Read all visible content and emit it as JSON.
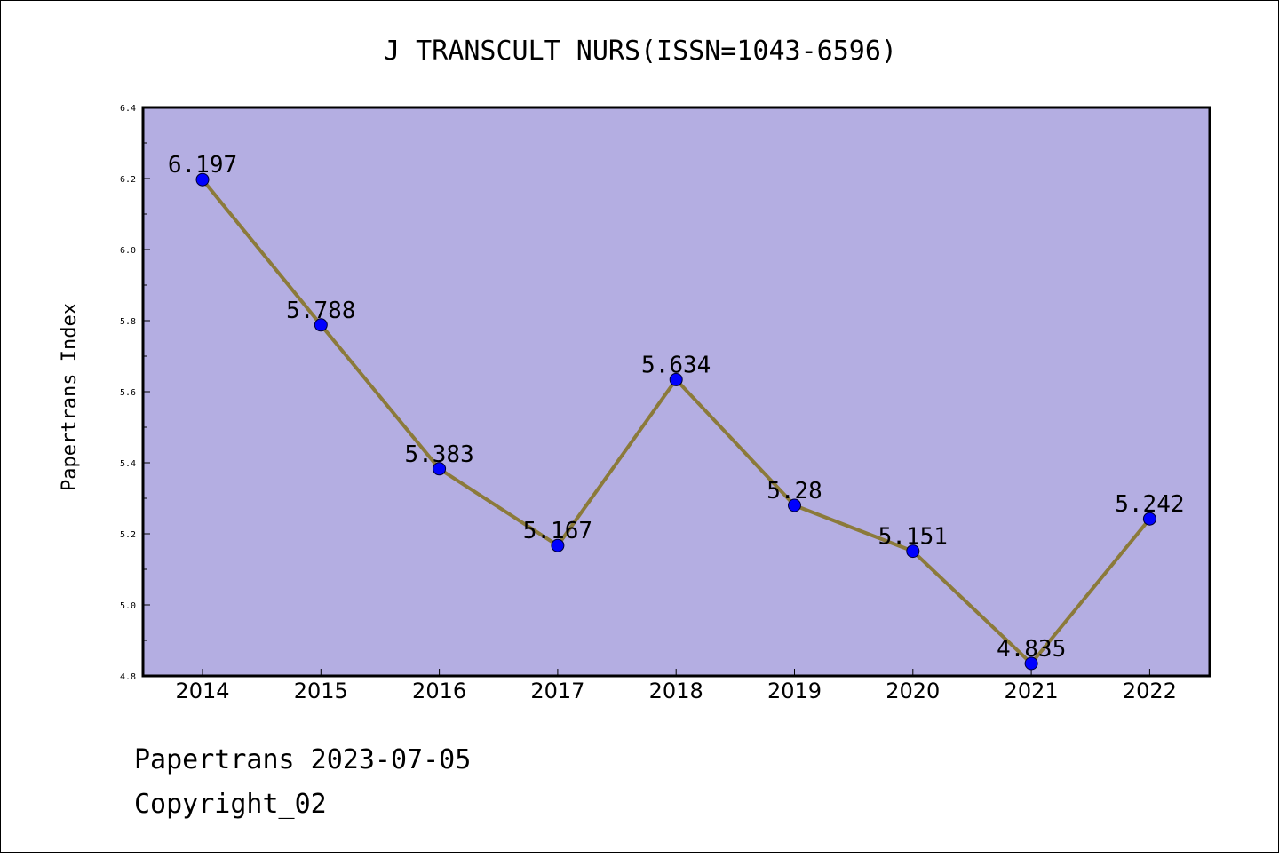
{
  "chart_data": {
    "type": "line",
    "title": "J TRANSCULT NURS(ISSN=1043-6596)",
    "xlabel": "",
    "ylabel": "Papertrans Index",
    "categories": [
      "2014",
      "2015",
      "2016",
      "2017",
      "2018",
      "2019",
      "2020",
      "2021",
      "2022"
    ],
    "values": [
      6.197,
      5.788,
      5.383,
      5.167,
      5.634,
      5.28,
      5.151,
      4.835,
      5.242
    ],
    "data_labels": [
      "6.197",
      "5.788",
      "5.383",
      "5.167",
      "5.634",
      "5.28",
      "5.151",
      "4.835",
      "5.242"
    ],
    "ylim": [
      4.8,
      6.4
    ],
    "yticks": [
      4.8,
      5.0,
      5.2,
      5.4,
      5.6,
      5.8,
      6.0,
      6.2,
      6.4
    ],
    "ytick_labels": [
      "4.8",
      "5.0",
      "5.2",
      "5.4",
      "5.6",
      "5.8",
      "6.0",
      "6.2",
      "6.4"
    ],
    "grid": false,
    "colors": {
      "plot_background": "#b4aee2",
      "line": "#8b7a3a",
      "marker": "#0000ff"
    }
  },
  "footer": {
    "line1": "Papertrans 2023-07-05",
    "line2": "Copyright_02"
  }
}
